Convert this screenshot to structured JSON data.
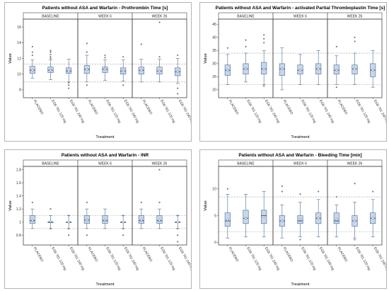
{
  "colors": {
    "box_fill": "#c7d7ec",
    "box_stroke": "#4a6b93",
    "median": "#1f3f6b",
    "outlier": "#7b7b7b",
    "reference_line": "#9a9a9a",
    "panel_border": "#444444"
  },
  "chart_data": [
    {
      "type": "boxplot",
      "title": "Patients without ASA and Warfarin - Prothrombin Time [s]",
      "ylabel": "Value",
      "xlabel": "Treatment",
      "ylim": [
        7,
        17
      ],
      "yticks": [
        8,
        10,
        12,
        14,
        16
      ],
      "reference_lines": [
        9.0,
        11.3
      ],
      "panels": [
        "BASELINE",
        "WEEK 6",
        "WEEK 26"
      ],
      "categories": [
        "PLACEBO",
        "EGb 761 120 mg",
        "EGb 761 240 mg"
      ],
      "boxes": [
        {
          "panel": "BASELINE",
          "category": "PLACEBO",
          "whisker_low": 9.5,
          "q1": 10.1,
          "median": 10.5,
          "q3": 11.0,
          "whisker_high": 11.8,
          "mean": 10.5,
          "outliers": [
            12.4,
            12.8,
            13.5
          ]
        },
        {
          "panel": "BASELINE",
          "category": "EGb 761 120 mg",
          "whisker_low": 9.3,
          "q1": 10.2,
          "median": 10.5,
          "q3": 10.9,
          "whisker_high": 11.8,
          "mean": 10.5,
          "outliers": [
            12.0,
            12.2,
            12.5,
            12.8,
            13.0
          ]
        },
        {
          "panel": "BASELINE",
          "category": "EGb 761 240 mg",
          "whisker_low": 9.0,
          "q1": 10.1,
          "median": 10.4,
          "q3": 10.8,
          "whisker_high": 11.9,
          "mean": 10.4,
          "outliers": [
            8.2,
            8.6,
            8.9
          ]
        },
        {
          "panel": "WEEK 6",
          "category": "PLACEBO",
          "whisker_low": 9.0,
          "q1": 10.1,
          "median": 10.6,
          "q3": 11.1,
          "whisker_high": 12.4,
          "mean": 10.6,
          "outliers": [
            8.6,
            12.8,
            13.9
          ]
        },
        {
          "panel": "WEEK 6",
          "category": "EGb 761 120 mg",
          "whisker_low": 9.2,
          "q1": 10.2,
          "median": 10.6,
          "q3": 10.9,
          "whisker_high": 11.8,
          "mean": 10.6,
          "outliers": [
            12.1,
            12.4
          ]
        },
        {
          "panel": "WEEK 6",
          "category": "EGb 761 240 mg",
          "whisker_low": 9.1,
          "q1": 10.0,
          "median": 10.4,
          "q3": 10.8,
          "whisker_high": 11.8,
          "mean": 10.4,
          "outliers": [
            8.6,
            12.2
          ]
        },
        {
          "panel": "WEEK 26",
          "category": "PLACEBO",
          "whisker_low": 9.0,
          "q1": 10.0,
          "median": 10.5,
          "q3": 10.9,
          "whisker_high": 11.9,
          "mean": 10.5,
          "outliers": [
            13.8
          ]
        },
        {
          "panel": "WEEK 26",
          "category": "EGb 761 120 mg",
          "whisker_low": 9.0,
          "q1": 10.0,
          "median": 10.4,
          "q3": 10.9,
          "whisker_high": 11.9,
          "mean": 10.4,
          "outliers": [
            12.2,
            16.6
          ]
        },
        {
          "panel": "WEEK 26",
          "category": "EGb 761 240 mg",
          "whisker_low": 8.8,
          "q1": 9.8,
          "median": 10.3,
          "q3": 10.8,
          "whisker_high": 12.0,
          "mean": 10.3,
          "outliers": [
            7.5,
            8.2,
            12.4
          ]
        }
      ]
    },
    {
      "type": "boxplot",
      "title": "Patients without ASA and Warfarin - activated Partial Thromboplastin Time [s]",
      "ylabel": "Value",
      "xlabel": "Treatment",
      "ylim": [
        17,
        47
      ],
      "yticks": [
        20,
        25,
        30,
        35,
        40,
        45
      ],
      "reference_lines": [
        22.0,
        34.0
      ],
      "panels": [
        "BASELINE",
        "WEEK 6",
        "WEEK 26"
      ],
      "categories": [
        "PLACEBO",
        "EGb 761 120 mg",
        "EGb 761 240 mg"
      ],
      "boxes": [
        {
          "panel": "BASELINE",
          "category": "PLACEBO",
          "whisker_low": 22.0,
          "q1": 25.5,
          "median": 27.5,
          "q3": 29.5,
          "whisker_high": 33.5,
          "mean": 27.5,
          "outliers": [
            36.0
          ]
        },
        {
          "panel": "BASELINE",
          "category": "EGb 761 120 mg",
          "whisker_low": 23.0,
          "q1": 26.0,
          "median": 28.0,
          "q3": 30.0,
          "whisker_high": 34.0,
          "mean": 28.0,
          "outliers": [
            36.5,
            39.0
          ]
        },
        {
          "panel": "BASELINE",
          "category": "EGb 761 240 mg",
          "whisker_low": 22.0,
          "q1": 26.0,
          "median": 28.0,
          "q3": 30.5,
          "whisker_high": 35.0,
          "mean": 28.0,
          "outliers": [
            21.5,
            38.0,
            39.5,
            41.0
          ]
        },
        {
          "panel": "WEEK 6",
          "category": "PLACEBO",
          "whisker_low": 20.0,
          "q1": 25.5,
          "median": 28.0,
          "q3": 30.0,
          "whisker_high": 36.0,
          "mean": 28.0,
          "outliers": []
        },
        {
          "panel": "WEEK 6",
          "category": "EGb 761 120 mg",
          "whisker_low": 22.0,
          "q1": 26.0,
          "median": 27.5,
          "q3": 29.5,
          "whisker_high": 33.5,
          "mean": 27.5,
          "outliers": []
        },
        {
          "panel": "WEEK 6",
          "category": "EGb 761 240 mg",
          "whisker_low": 22.0,
          "q1": 26.0,
          "median": 28.0,
          "q3": 30.0,
          "whisker_high": 35.0,
          "mean": 28.0,
          "outliers": []
        },
        {
          "panel": "WEEK 26",
          "category": "PLACEBO",
          "whisker_low": 22.0,
          "q1": 26.0,
          "median": 27.5,
          "q3": 29.5,
          "whisker_high": 33.0,
          "mean": 27.5,
          "outliers": [
            21.0,
            36.5
          ]
        },
        {
          "panel": "WEEK 26",
          "category": "EGb 761 120 mg",
          "whisker_low": 22.0,
          "q1": 26.0,
          "median": 28.0,
          "q3": 29.5,
          "whisker_high": 34.0,
          "mean": 28.0,
          "outliers": [
            38.5,
            40.0
          ]
        },
        {
          "panel": "WEEK 26",
          "category": "EGb 761 240 mg",
          "whisker_low": 21.0,
          "q1": 25.0,
          "median": 27.5,
          "q3": 30.0,
          "whisker_high": 35.0,
          "mean": 27.5,
          "outliers": []
        }
      ]
    },
    {
      "type": "boxplot",
      "title": "Patients without ASA and Warfarin - INR",
      "ylabel": "Value",
      "xlabel": "Treatment",
      "ylim": [
        0.65,
        1.85
      ],
      "yticks": [
        0.8,
        1.0,
        1.2,
        1.4,
        1.6,
        1.8
      ],
      "reference_lines": [
        0.9,
        1.1
      ],
      "panels": [
        "BASELINE",
        "WEEK 6",
        "WEEK 26"
      ],
      "categories": [
        "PLACEBO",
        "EGb 761 120 mg",
        "EGb 761 240 mg"
      ],
      "boxes": [
        {
          "panel": "BASELINE",
          "category": "PLACEBO",
          "whisker_low": 0.9,
          "q1": 0.98,
          "median": 1.02,
          "q3": 1.1,
          "whisker_high": 1.2,
          "mean": 1.03,
          "outliers": [
            1.3
          ]
        },
        {
          "panel": "BASELINE",
          "category": "EGb 761 120 mg",
          "whisker_low": 0.9,
          "q1": 1.0,
          "median": 1.0,
          "q3": 1.0,
          "whisker_high": 1.1,
          "mean": 1.01,
          "outliers": [
            0.9,
            1.2
          ]
        },
        {
          "panel": "BASELINE",
          "category": "EGb 761 240 mg",
          "whisker_low": 0.9,
          "q1": 1.0,
          "median": 1.0,
          "q3": 1.0,
          "whisker_high": 1.1,
          "mean": 1.0,
          "outliers": [
            0.8,
            0.9,
            1.1
          ]
        },
        {
          "panel": "WEEK 6",
          "category": "PLACEBO",
          "whisker_low": 0.9,
          "q1": 0.98,
          "median": 1.03,
          "q3": 1.1,
          "whisker_high": 1.2,
          "mean": 1.03,
          "outliers": [
            0.8,
            1.3
          ]
        },
        {
          "panel": "WEEK 6",
          "category": "EGb 761 120 mg",
          "whisker_low": 0.9,
          "q1": 0.98,
          "median": 1.02,
          "q3": 1.1,
          "whisker_high": 1.2,
          "mean": 1.03,
          "outliers": []
        },
        {
          "panel": "WEEK 6",
          "category": "EGb 761 240 mg",
          "whisker_low": 0.9,
          "q1": 1.0,
          "median": 1.0,
          "q3": 1.0,
          "whisker_high": 1.1,
          "mean": 1.0,
          "outliers": [
            0.8,
            0.9,
            1.1
          ]
        },
        {
          "panel": "WEEK 26",
          "category": "PLACEBO",
          "whisker_low": 0.9,
          "q1": 0.98,
          "median": 1.02,
          "q3": 1.1,
          "whisker_high": 1.2,
          "mean": 1.03,
          "outliers": [
            1.3
          ]
        },
        {
          "panel": "WEEK 26",
          "category": "EGb 761 120 mg",
          "whisker_low": 0.9,
          "q1": 0.98,
          "median": 1.02,
          "q3": 1.1,
          "whisker_high": 1.2,
          "mean": 1.03,
          "outliers": [
            1.3,
            1.8
          ]
        },
        {
          "panel": "WEEK 26",
          "category": "EGb 761 240 mg",
          "whisker_low": 0.9,
          "q1": 1.0,
          "median": 1.0,
          "q3": 1.0,
          "whisker_high": 1.1,
          "mean": 1.0,
          "outliers": [
            0.7,
            0.8,
            0.9,
            1.1
          ]
        }
      ]
    },
    {
      "type": "boxplot",
      "title": "Patients without ASA and Warfarin - Bleeding Time [min]",
      "ylabel": "Value",
      "xlabel": "Treatment",
      "ylim": [
        -0.5,
        14.2
      ],
      "yticks": [
        0,
        5,
        10
      ],
      "reference_lines": [
        2.0,
        8.5
      ],
      "panels": [
        "BASELINE",
        "WEEK 6",
        "WEEK 26"
      ],
      "categories": [
        "PLACEBO",
        "EGb 761 120 mg",
        "EGb 761 240 mg"
      ],
      "boxes": [
        {
          "panel": "BASELINE",
          "category": "PLACEBO",
          "whisker_low": 0.8,
          "q1": 3.0,
          "median": 4.0,
          "q3": 5.5,
          "whisker_high": 9.0,
          "mean": 4.2,
          "outliers": [
            10.0
          ]
        },
        {
          "panel": "BASELINE",
          "category": "EGb 761 120 mg",
          "whisker_low": 1.0,
          "q1": 3.5,
          "median": 4.5,
          "q3": 6.0,
          "whisker_high": 9.0,
          "mean": 4.5,
          "outliers": []
        },
        {
          "panel": "BASELINE",
          "category": "EGb 761 240 mg",
          "whisker_low": 1.0,
          "q1": 3.5,
          "median": 5.0,
          "q3": 6.0,
          "whisker_high": 9.5,
          "mean": 4.8,
          "outliers": []
        },
        {
          "panel": "WEEK 6",
          "category": "PLACEBO",
          "whisker_low": 0.8,
          "q1": 3.0,
          "median": 4.0,
          "q3": 5.0,
          "whisker_high": 7.0,
          "mean": 4.0,
          "outliers": [
            9.5,
            10.5
          ]
        },
        {
          "panel": "WEEK 6",
          "category": "EGb 761 120 mg",
          "whisker_low": 1.0,
          "q1": 3.5,
          "median": 4.0,
          "q3": 5.0,
          "whisker_high": 7.5,
          "mean": 4.3,
          "outliers": [
            0.5,
            9.0
          ]
        },
        {
          "panel": "WEEK 6",
          "category": "EGb 761 240 mg",
          "whisker_low": 1.0,
          "q1": 3.5,
          "median": 4.5,
          "q3": 5.5,
          "whisker_high": 8.0,
          "mean": 4.5,
          "outliers": [
            9.5
          ]
        },
        {
          "panel": "WEEK 26",
          "category": "PLACEBO",
          "whisker_low": 1.0,
          "q1": 3.5,
          "median": 4.0,
          "q3": 5.5,
          "whisker_high": 7.0,
          "mean": 4.3,
          "outliers": [
            8.5
          ]
        },
        {
          "panel": "WEEK 26",
          "category": "EGb 761 120 mg",
          "whisker_low": 0.8,
          "q1": 3.0,
          "median": 4.0,
          "q3": 5.0,
          "whisker_high": 7.5,
          "mean": 4.0,
          "outliers": [
            0.5,
            11.0
          ]
        },
        {
          "panel": "WEEK 26",
          "category": "EGb 761 240 mg",
          "whisker_low": 1.0,
          "q1": 3.5,
          "median": 4.5,
          "q3": 5.5,
          "whisker_high": 8.0,
          "mean": 4.5,
          "outliers": [
            9.5
          ]
        }
      ]
    }
  ]
}
